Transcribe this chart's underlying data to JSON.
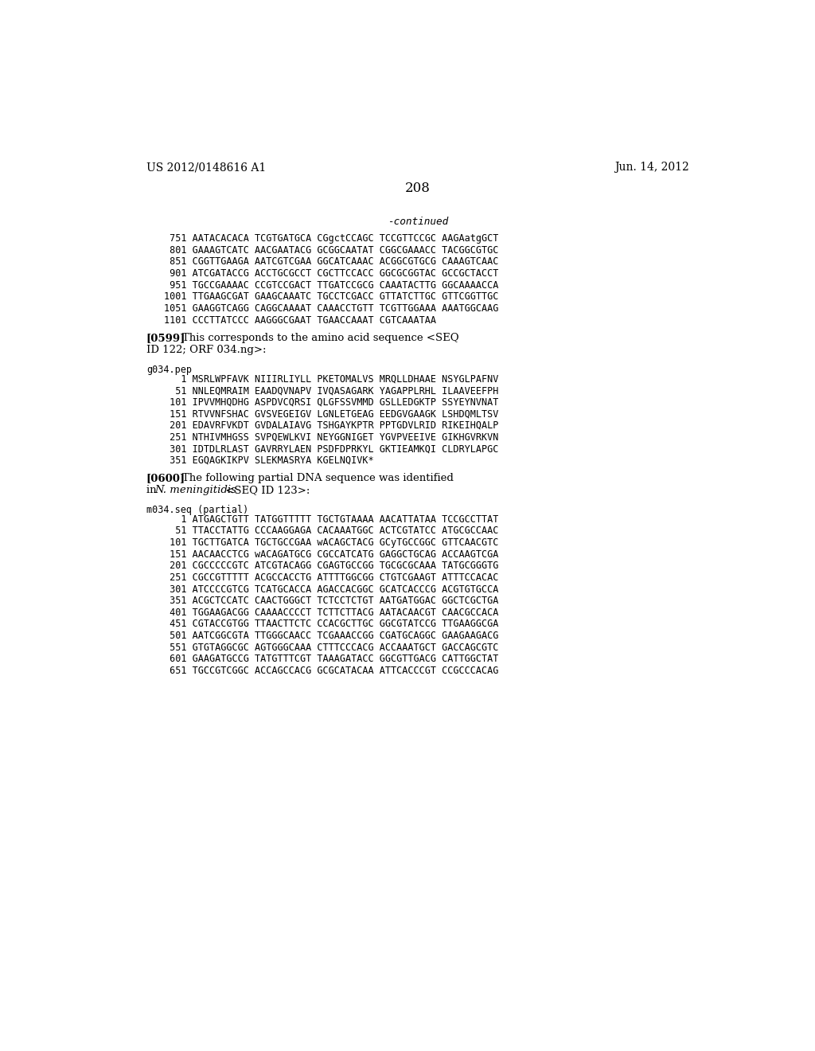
{
  "header_left": "US 2012/0148616 A1",
  "header_right": "Jun. 14, 2012",
  "page_number": "208",
  "background_color": "#ffffff",
  "text_color": "#000000",
  "continued_label": "-continued",
  "dna_block1": [
    " 751 AATACACACA TCGTGATGCA CGgctCCAGC TCCGTTCCGC AAGAatgGCT",
    " 801 GAAAGTCATC AACGAATACG GCGGCAATAT CGGCGAAACC TACGGCGTGC",
    " 851 CGGTTGAAGA AATCGTCGAA GGCATCAAAC ACGGCGTGCG CAAAGTCAAC",
    " 901 ATCGATACCG ACCTGCGCCT CGCTTCCACC GGCGCGGTAC GCCGCTACCT",
    " 951 TGCCGAAAAC CCGTCCGACT TTGATCCGCG CAAATACTTG GGCAAAACCA",
    "1001 TTGAAGCGAT GAAGCAAATC TGCCTCGACC GTTATCTTGC GTTCGGTTGC",
    "1051 GAAGGTCAGG CAGGCAAAAT CAAACCTGTT TCGTTGGAAA AAATGGCAAG",
    "1101 CCCTTATCCC AAGGGCGAAT TGAACCAAAT CGTCAAATAA"
  ],
  "para_0599_tag": "[0599]",
  "para_0599_line1": "This corresponds to the amino acid sequence <SEQ",
  "para_0599_line2": "ID 122; ORF 034.ng>:",
  "aa_header": "g034.pep",
  "aa_lines": [
    "   1 MSRLWPFAVK NIIIRLIYLL PKETOMALVS MRQLLDHAAE NSYGLPAFNV",
    "  51 NNLEQMRAIM EAADQVNAPV IVQASAGARK YAGAPPLRHL ILAAVEEFPH",
    " 101 IPVVMHQDHG ASPDVCQRSI QLGFSSVMMD GSLLEDGKTP SSYEYNVNAT",
    " 151 RTVVNFSHAC GVSVEGEIGV LGNLETGEAG EEDGVGAAGK LSHDQMLTSV",
    " 201 EDAVRFVKDT GVDALAIAVG TSHGAYKPTR PPTGDVLRID RIKEIHQALP",
    " 251 NTHIVMHGSS SVPQEWLKVI NEYGGNIGET YGVPVEEIVE GIKHGVRKVN",
    " 301 IDTDLRLAST GAVRRYLAEN PSDFDPRKYL GKTIEAMKQI CLDRYLAPGC",
    " 351 EGQAGKIKPV SLEKMASRYA KGELNQIVK*"
  ],
  "para_0600_tag": "[0600]",
  "para_0600_line1": "The following partial DNA sequence was identified",
  "para_0600_line2_pre": "in ",
  "para_0600_line2_italic": "N. meningitidis",
  "para_0600_line2_post": " <SEQ ID 123>:",
  "dna_header2": "m034.seq (partial)",
  "dna_block2": [
    "   1 ATGAGCTGTT TATGGTTTTT TGCTGTAAAA AACATTATAA TCCGCCTTAT",
    "  51 TTACCTATTG CCCAAGGAGA CACAAATGGC ACTCGTATCC ATGCGCCAAC",
    " 101 TGCTTGATCA TGCTGCCGAA wACAGCTACG GCyTGCCGGC GTTCAACGTC",
    " 151 AACAACCTCG wACAGATGCG CGCCATCATG GAGGCTGCAG ACCAAGTCGA",
    " 201 CGCCCCCGTC ATCGTACAGG CGAGTGCCGG TGCGCGCAAA TATGCGGGTG",
    " 251 CGCCGTTTTT ACGCCACCTG ATTTTGGCGG CTGTCGAAGT ATTTCCACAC",
    " 301 ATCCCCGTCG TCATGCACCA AGACCACGGC GCATCACCCG ACGTGTGCCA",
    " 351 ACGCTCCATC CAACTGGGCT TCTCCTCTGT AATGATGGAC GGCTCGCTGA",
    " 401 TGGAAGACGG CAAAACCCCT TCTTCTTACG AATACAACGT CAACGCCACA",
    " 451 CGTACCGTGG TTAACTTCTC CCACGCTTGC GGCGTATCCG TTGAAGGCGA",
    " 501 AATCGGCGTA TTGGGCAACC TCGAAACCGG CGATGCAGGC GAAGAAGACG",
    " 551 GTGTAGGCGC AGTGGGCAAA CTTTCCCACG ACCAAATGCT GACCAGCGTC",
    " 601 GAAGATGCCG TATGTTTCGT TAAAGATACC GGCGTTGACG CATTGGCTAT",
    " 651 TGCCGTCGGC ACCAGCCACG GCGCATACAA ATTCACCCGT CCGCCCACAG"
  ]
}
